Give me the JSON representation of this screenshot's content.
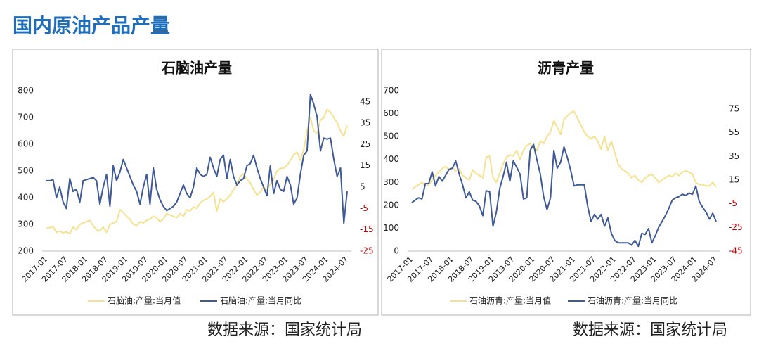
{
  "header": {
    "title": "国内原油产品产量"
  },
  "sources": [
    "数据来源：国家统计局",
    "数据来源：国家统计局"
  ],
  "chart_data": [
    {
      "type": "line",
      "title": "石脑油产量",
      "categories": [
        "2017-01",
        null,
        null,
        null,
        null,
        null,
        "2017-07",
        null,
        null,
        null,
        null,
        null,
        "2018-01",
        null,
        null,
        null,
        null,
        null,
        "2018-07",
        null,
        null,
        null,
        null,
        null,
        "2019-01",
        null,
        null,
        null,
        null,
        null,
        "2019-07",
        null,
        null,
        null,
        null,
        null,
        "2020-01",
        null,
        null,
        null,
        null,
        null,
        "2020-07",
        null,
        null,
        null,
        null,
        null,
        "2021-01",
        null,
        null,
        null,
        null,
        null,
        "2021-07",
        null,
        null,
        null,
        null,
        null,
        "2022-01",
        null,
        null,
        null,
        null,
        null,
        "2022-07",
        null,
        null,
        null,
        null,
        null,
        "2023-01",
        null,
        null,
        null,
        null,
        null,
        "2023-07",
        null,
        null,
        null,
        null,
        null,
        "2024-01",
        null,
        null,
        null,
        null,
        null,
        "2024-07"
      ],
      "ylim": [
        200,
        800
      ],
      "yticks": [
        200,
        300,
        400,
        500,
        600,
        700,
        800
      ],
      "y2lim": [
        -25,
        50.2
      ],
      "y2ticks": [
        -25,
        -15,
        -5,
        5,
        15,
        25,
        35,
        45
      ],
      "y2tick_negative_color": "#c00000",
      "legend": "bottom",
      "series": [
        {
          "name": "石脑油:产量:当月值",
          "color": "#f5e18f",
          "values": [
            285,
            288,
            292,
            270,
            275,
            268,
            272,
            265,
            290,
            280,
            300,
            305,
            310,
            315,
            295,
            280,
            275,
            290,
            270,
            300,
            305,
            310,
            355,
            345,
            330,
            320,
            300,
            295,
            310,
            305,
            315,
            320,
            330,
            325,
            310,
            320,
            340,
            335,
            330,
            325,
            340,
            330,
            355,
            350,
            365,
            360,
            380,
            390,
            395,
            405,
            420,
            350,
            395,
            385,
            395,
            410,
            430,
            450,
            480,
            490,
            470,
            455,
            430,
            410,
            420,
            440,
            430,
            450,
            470,
            500,
            510,
            510,
            520,
            540,
            560,
            570,
            540,
            580,
            650,
            700,
            650,
            640,
            690,
            700,
            730,
            720,
            700,
            680,
            650,
            630,
            670
          ]
        },
        {
          "name": "石脑油:产量:当月同比",
          "color": "#3f5a99",
          "axis": "y2",
          "values": [
            8,
            8,
            8.5,
            0,
            5,
            -2,
            -5,
            9,
            3,
            4,
            -2,
            8,
            8.5,
            9,
            9.5,
            8,
            -3,
            5,
            11,
            -4,
            15,
            8,
            12,
            18,
            14,
            10,
            6,
            3,
            -3,
            5,
            11,
            -3,
            14,
            4,
            -1,
            -4,
            -6,
            -5,
            -4,
            -2,
            2,
            6,
            2,
            0,
            5,
            14,
            11,
            10,
            11,
            19,
            14,
            10,
            18,
            20,
            9,
            18,
            10,
            6,
            8,
            9,
            15,
            16,
            20,
            14,
            9,
            5,
            1,
            15,
            2,
            8,
            4,
            3,
            10,
            6,
            -3,
            0,
            11,
            20,
            22,
            48.5,
            44,
            38,
            22,
            28,
            27.5,
            28,
            18,
            10,
            14,
            -12,
            3
          ]
        }
      ]
    },
    {
      "type": "line",
      "title": "沥青产量",
      "categories": [
        "2017-01",
        null,
        null,
        null,
        null,
        null,
        "2017-07",
        null,
        null,
        null,
        null,
        null,
        "2018-01",
        null,
        null,
        null,
        null,
        null,
        "2018-07",
        null,
        null,
        null,
        null,
        null,
        "2019-01",
        null,
        null,
        null,
        null,
        null,
        "2019-07",
        null,
        null,
        null,
        null,
        null,
        "2020-01",
        null,
        null,
        null,
        null,
        null,
        "2020-07",
        null,
        null,
        null,
        null,
        null,
        "2021-01",
        null,
        null,
        null,
        null,
        null,
        "2021-07",
        null,
        null,
        null,
        null,
        null,
        "2022-01",
        null,
        null,
        null,
        null,
        null,
        "2022-07",
        null,
        null,
        null,
        null,
        null,
        "2023-01",
        null,
        null,
        null,
        null,
        null,
        "2023-07",
        null,
        null,
        null,
        null,
        null,
        "2024-01",
        null,
        null,
        null,
        null,
        null,
        "2024-07"
      ],
      "ylim": [
        0,
        700
      ],
      "yticks": [
        0,
        100,
        200,
        300,
        400,
        500,
        600,
        700
      ],
      "y2lim": [
        -45,
        90.4
      ],
      "y2ticks": [
        -45,
        -25,
        -5,
        15,
        35,
        55,
        75
      ],
      "y2tick_negative_color": "#c00000",
      "legend": "bottom",
      "series": [
        {
          "name": "石油沥青:产量:当月值",
          "color": "#f5e18f",
          "values": [
            270,
            280,
            290,
            300,
            285,
            290,
            310,
            330,
            345,
            360,
            370,
            355,
            365,
            350,
            360,
            330,
            320,
            310,
            355,
            340,
            330,
            320,
            410,
            415,
            320,
            300,
            340,
            380,
            410,
            420,
            415,
            440,
            400,
            440,
            460,
            470,
            450,
            440,
            480,
            470,
            500,
            520,
            570,
            540,
            510,
            575,
            590,
            605,
            610,
            580,
            550,
            520,
            500,
            490,
            500,
            480,
            445,
            500,
            440,
            480,
            430,
            380,
            360,
            350,
            340,
            320,
            330,
            310,
            300,
            320,
            330,
            335,
            320,
            300,
            310,
            320,
            330,
            325,
            340,
            330,
            345,
            350,
            345,
            335,
            300,
            290,
            290,
            285,
            285,
            300,
            280
          ]
        },
        {
          "name": "石油沥青:产量:当月同比",
          "color": "#3f5a99",
          "axis": "y2",
          "values": [
            -4,
            -2,
            0,
            -1,
            12,
            12,
            22,
            10,
            18,
            14,
            19,
            24,
            25,
            31,
            20,
            11,
            0,
            5,
            -2,
            -3,
            -7,
            -15,
            6,
            5,
            -24,
            -12,
            8,
            18,
            30,
            14,
            31,
            26,
            20,
            -1,
            0,
            40,
            45,
            32,
            20,
            1,
            -10,
            0,
            40,
            25,
            30,
            43,
            34,
            23,
            10,
            11,
            11,
            11,
            -7,
            -20,
            -14,
            -18,
            -14,
            -24,
            -17,
            -30,
            -36,
            -38,
            -38,
            -38,
            -38,
            -40,
            -36,
            -41,
            -30,
            -31,
            -26,
            -38,
            -32,
            -25,
            -20,
            -15,
            -9,
            -2,
            0,
            1,
            3,
            2,
            4,
            3,
            10,
            -3,
            -8,
            -12,
            -18,
            -13,
            -20
          ]
        }
      ]
    }
  ]
}
